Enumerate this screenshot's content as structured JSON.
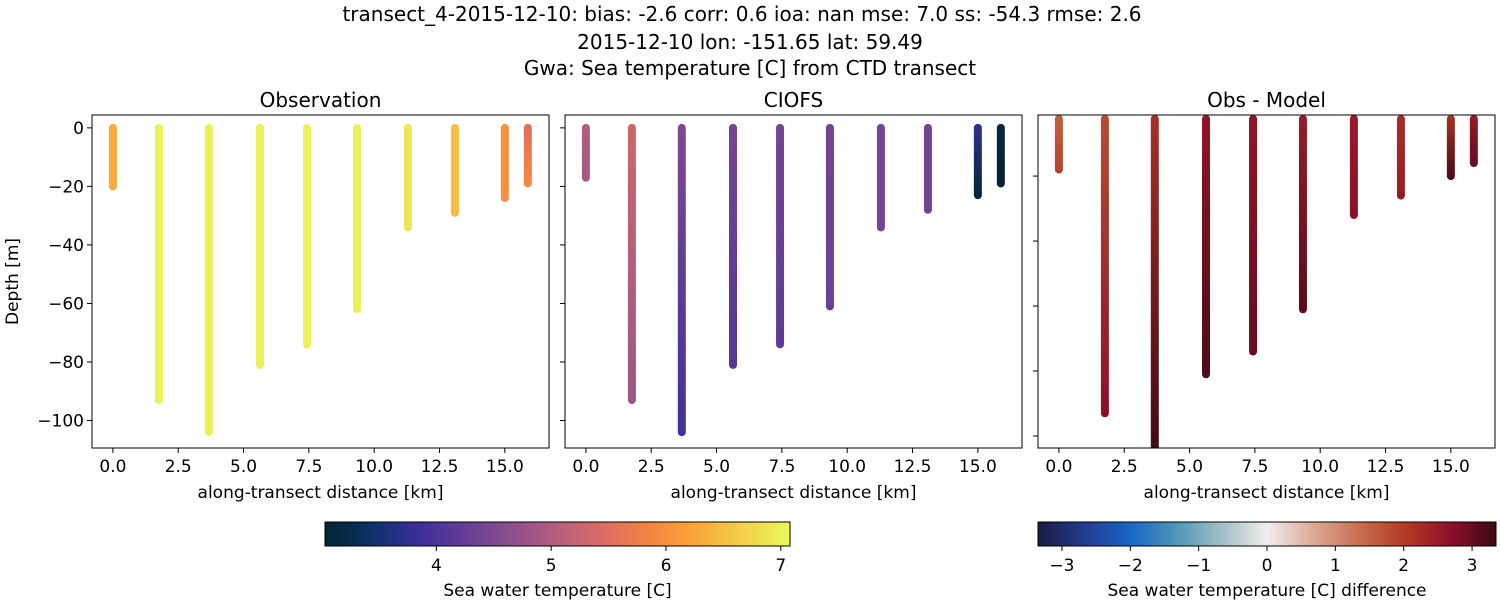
{
  "title_lines": [
    "transect_4-2015-12-10: bias: -2.6  corr: 0.6  ioa: nan  mse: 7.0  ss: -54.3  rmse: 2.6",
    "2015-12-10 lon: -151.65 lat: 59.49",
    "Gwa: Sea temperature [C] from CTD transect"
  ],
  "chart_data": [
    {
      "type": "scatter",
      "title": "Observation",
      "xlabel": "along-transect distance [km]",
      "ylabel": "Depth [m]",
      "xlim": [
        -0.8,
        16.69
      ],
      "ylim": [
        -109.4,
        4.4
      ],
      "xticks": [
        0.0,
        2.5,
        5.0,
        7.5,
        10.0,
        12.5,
        15.0
      ],
      "xtick_labels": [
        "0.0",
        "2.5",
        "5.0",
        "7.5",
        "10.0",
        "12.5",
        "15.0"
      ],
      "yticks": [
        0,
        -20,
        -40,
        -60,
        -80,
        -100
      ],
      "ytick_labels": [
        "0",
        "−20",
        "−40",
        "−60",
        "−80",
        "−100"
      ],
      "colormap": "thermal",
      "stations": [
        {
          "x": 0.0,
          "max_depth": -20,
          "value_top": 6.3,
          "value_bottom": 6.3
        },
        {
          "x": 1.76,
          "max_depth": -93,
          "value_top": 7.0,
          "value_bottom": 7.0
        },
        {
          "x": 3.67,
          "max_depth": -104,
          "value_top": 7.0,
          "value_bottom": 7.0
        },
        {
          "x": 5.63,
          "max_depth": -81,
          "value_top": 7.0,
          "value_bottom": 7.0
        },
        {
          "x": 7.43,
          "max_depth": -74,
          "value_top": 7.0,
          "value_bottom": 7.0
        },
        {
          "x": 9.34,
          "max_depth": -62,
          "value_top": 7.0,
          "value_bottom": 7.0
        },
        {
          "x": 11.29,
          "max_depth": -34,
          "value_top": 6.9,
          "value_bottom": 6.9
        },
        {
          "x": 13.09,
          "max_depth": -29,
          "value_top": 6.5,
          "value_bottom": 6.5
        },
        {
          "x": 15.0,
          "max_depth": -24,
          "value_top": 6.0,
          "value_bottom": 6.0
        },
        {
          "x": 15.88,
          "max_depth": -19,
          "value_top": 5.5,
          "value_bottom": 5.9
        }
      ]
    },
    {
      "type": "scatter",
      "title": "CIOFS",
      "xlabel": "along-transect distance [km]",
      "xlim": [
        -0.8,
        16.69
      ],
      "ylim": [
        -109.4,
        4.4
      ],
      "xticks": [
        0.0,
        2.5,
        5.0,
        7.5,
        10.0,
        12.5,
        15.0
      ],
      "xtick_labels": [
        "0.0",
        "2.5",
        "5.0",
        "7.5",
        "10.0",
        "12.5",
        "15.0"
      ],
      "yticks": [
        0,
        -20,
        -40,
        -60,
        -80,
        -100
      ],
      "colormap": "thermal",
      "stations": [
        {
          "x": 0.0,
          "max_depth": -17,
          "value_top": 5.0,
          "value_bottom": 4.9
        },
        {
          "x": 1.76,
          "max_depth": -93,
          "value_top": 5.3,
          "value_bottom": 4.8
        },
        {
          "x": 3.67,
          "max_depth": -104,
          "value_top": 4.5,
          "value_bottom": 3.9
        },
        {
          "x": 5.63,
          "max_depth": -81,
          "value_top": 4.4,
          "value_bottom": 4.1
        },
        {
          "x": 7.43,
          "max_depth": -74,
          "value_top": 4.4,
          "value_bottom": 4.2
        },
        {
          "x": 9.34,
          "max_depth": -61,
          "value_top": 4.4,
          "value_bottom": 4.3
        },
        {
          "x": 11.29,
          "max_depth": -34,
          "value_top": 4.4,
          "value_bottom": 4.4
        },
        {
          "x": 13.09,
          "max_depth": -28,
          "value_top": 4.4,
          "value_bottom": 4.4
        },
        {
          "x": 15.0,
          "max_depth": -23,
          "value_top": 3.7,
          "value_bottom": 3.1
        },
        {
          "x": 15.88,
          "max_depth": -19,
          "value_top": 3.1,
          "value_bottom": 3.0
        }
      ]
    },
    {
      "type": "scatter",
      "title": "Obs - Model",
      "xlabel": "along-transect distance [km]",
      "xlim": [
        -0.8,
        16.69
      ],
      "ylim": [
        -103.7,
        -1.2
      ],
      "xticks": [
        0.0,
        2.5,
        5.0,
        7.5,
        10.0,
        12.5,
        15.0
      ],
      "xtick_labels": [
        "0.0",
        "2.5",
        "5.0",
        "7.5",
        "10.0",
        "12.5",
        "15.0"
      ],
      "yticks": [
        -20,
        -40,
        -60,
        -80,
        -100
      ],
      "colormap": "balance",
      "stations": [
        {
          "x": 0.0,
          "max_depth": -18,
          "value_top": 1.5,
          "value_bottom": 1.9
        },
        {
          "x": 1.76,
          "max_depth": -93,
          "value_top": 1.8,
          "value_bottom": 2.7
        },
        {
          "x": 3.67,
          "max_depth": -104,
          "value_top": 2.2,
          "value_bottom": 3.3
        },
        {
          "x": 5.63,
          "max_depth": -81,
          "value_top": 2.6,
          "value_bottom": 3.2
        },
        {
          "x": 7.43,
          "max_depth": -74,
          "value_top": 2.6,
          "value_bottom": 3.0
        },
        {
          "x": 9.34,
          "max_depth": -61,
          "value_top": 2.5,
          "value_bottom": 3.1
        },
        {
          "x": 11.29,
          "max_depth": -32,
          "value_top": 2.5,
          "value_bottom": 2.7
        },
        {
          "x": 13.09,
          "max_depth": -26,
          "value_top": 2.2,
          "value_bottom": 2.5
        },
        {
          "x": 15.0,
          "max_depth": -20,
          "value_top": 2.1,
          "value_bottom": 3.2
        },
        {
          "x": 15.88,
          "max_depth": -16,
          "value_top": 2.5,
          "value_bottom": 3.0
        }
      ]
    }
  ],
  "colorbars": [
    {
      "label": "Sea water temperature [C]",
      "range": [
        3.03,
        7.08
      ],
      "ticks": [
        4,
        5,
        6,
        7
      ],
      "tick_labels": [
        "4",
        "5",
        "6",
        "7"
      ],
      "colormap": "thermal"
    },
    {
      "label": "Sea water temperature [C] difference",
      "range": [
        -3.35,
        3.35
      ],
      "ticks": [
        -3,
        -2,
        -1,
        0,
        1,
        2,
        3
      ],
      "tick_labels": [
        "−3",
        "−2",
        "−1",
        "0",
        "1",
        "2",
        "3"
      ],
      "colormap": "balance"
    }
  ],
  "colormaps": {
    "thermal": [
      "#042333",
      "#0c3268",
      "#3b2f98",
      "#643d97",
      "#8d4f8c",
      "#b65f7d",
      "#dc6c63",
      "#f5853e",
      "#fba73a",
      "#f3d04a",
      "#e8fa5b"
    ],
    "balance": [
      "#181c43",
      "#253a8c",
      "#1766c8",
      "#4e95b7",
      "#9fbfc5",
      "#f1eceb",
      "#dcaa96",
      "#c8704f",
      "#b43b24",
      "#8e1029",
      "#3c0912"
    ]
  }
}
